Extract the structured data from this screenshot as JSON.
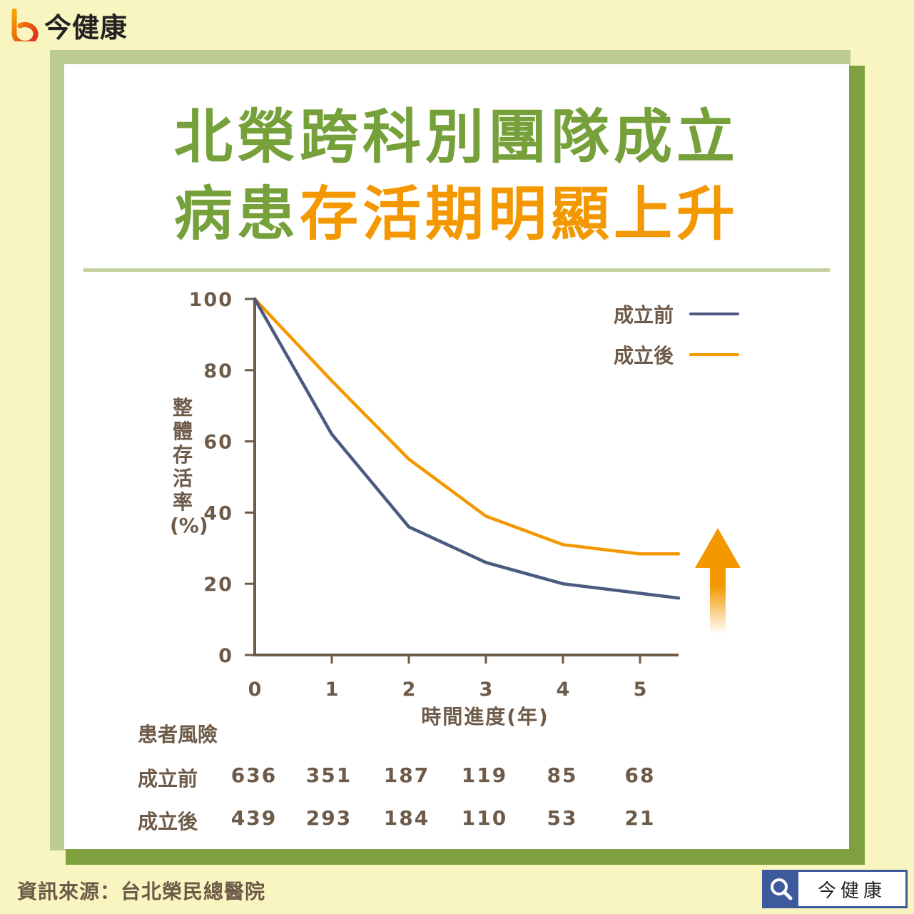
{
  "brand": {
    "logo_text": "今健康"
  },
  "title": {
    "line1": "北榮跨科別團隊成立",
    "line2_green": "病患",
    "line2_orange": "存活期明顯上升"
  },
  "colors": {
    "green": "#76a03a",
    "orange": "#f39800",
    "navy": "#4a5a80",
    "axis": "#6e5a48"
  },
  "chart_data": {
    "type": "line",
    "xlabel": "時間進度(年)",
    "ylabel": "整體存活率(%)",
    "xlim": [
      0,
      5.5
    ],
    "ylim": [
      0,
      100
    ],
    "xticks": [
      0,
      1,
      2,
      3,
      4,
      5
    ],
    "yticks": [
      0,
      20,
      40,
      60,
      80,
      100
    ],
    "series": [
      {
        "name": "成立前",
        "color": "#4a5a80",
        "x": [
          0,
          1,
          2,
          3,
          4,
          5.5
        ],
        "y": [
          100,
          62,
          36,
          26,
          20,
          16
        ]
      },
      {
        "name": "成立後",
        "color": "#f39800",
        "x": [
          0,
          1,
          2,
          3,
          4,
          5,
          5.5
        ],
        "y": [
          100,
          77,
          55,
          39,
          31,
          28.4,
          28.4
        ]
      }
    ],
    "annotation": "up-arrow"
  },
  "risk_table": {
    "title": "患者風險",
    "rows": [
      {
        "label": "成立前",
        "values": [
          "636",
          "351",
          "187",
          "119",
          "85",
          "68"
        ]
      },
      {
        "label": "成立後",
        "values": [
          "439",
          "293",
          "184",
          "110",
          "53",
          "21"
        ]
      }
    ]
  },
  "source": "資訊來源：台北榮民總醫院",
  "search_badge": {
    "label": "今健康",
    "icon": "search-icon"
  }
}
